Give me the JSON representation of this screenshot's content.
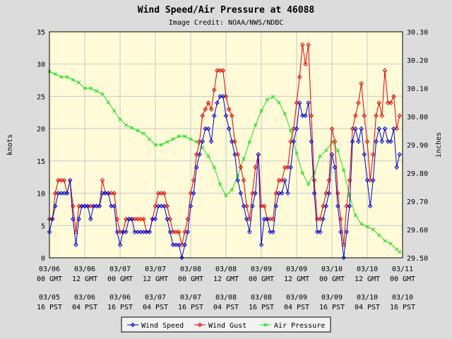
{
  "chart_data": {
    "type": "line",
    "title": "Wind Speed/Air Pressure at 46088",
    "subtitle": "Image Credit: NOAA/NWS/NDBC",
    "ylabel_left": "knots",
    "ylabel_right": "inches",
    "ylim_left": [
      0,
      35
    ],
    "ylim_right": [
      29.5,
      30.3
    ],
    "grid": true,
    "legend_position": "bottom-center",
    "left_ticks": [
      "0",
      "5",
      "10",
      "15",
      "20",
      "25",
      "30",
      "35"
    ],
    "right_ticks": [
      "29.50",
      "29.60",
      "29.70",
      "29.80",
      "29.90",
      "30.00",
      "30.10",
      "30.20",
      "30.30"
    ],
    "x_unit": "hours since 03/06 00 GMT",
    "x_range": [
      0,
      120
    ],
    "x_ticks": [
      {
        "gmt_date": "03/06",
        "gmt_time": "00 GMT",
        "pst_date": "03/05",
        "pst_time": "16 PST"
      },
      {
        "gmt_date": "03/06",
        "gmt_time": "12 GMT",
        "pst_date": "03/06",
        "pst_time": "04 PST"
      },
      {
        "gmt_date": "03/07",
        "gmt_time": "00 GMT",
        "pst_date": "03/06",
        "pst_time": "16 PST"
      },
      {
        "gmt_date": "03/07",
        "gmt_time": "12 GMT",
        "pst_date": "03/07",
        "pst_time": "04 PST"
      },
      {
        "gmt_date": "03/08",
        "gmt_time": "00 GMT",
        "pst_date": "03/07",
        "pst_time": "16 PST"
      },
      {
        "gmt_date": "03/08",
        "gmt_time": "12 GMT",
        "pst_date": "03/08",
        "pst_time": "04 PST"
      },
      {
        "gmt_date": "03/09",
        "gmt_time": "00 GMT",
        "pst_date": "03/08",
        "pst_time": "16 PST"
      },
      {
        "gmt_date": "03/09",
        "gmt_time": "12 GMT",
        "pst_date": "03/09",
        "pst_time": "04 PST"
      },
      {
        "gmt_date": "03/10",
        "gmt_time": "00 GMT",
        "pst_date": "03/09",
        "pst_time": "16 PST"
      },
      {
        "gmt_date": "03/10",
        "gmt_time": "12 GMT",
        "pst_date": "03/10",
        "pst_time": "04 PST"
      },
      {
        "gmt_date": "03/11",
        "gmt_time": "00 GMT",
        "pst_date": "03/10",
        "pst_time": "16 PST"
      }
    ],
    "series": [
      {
        "name": "Wind Speed",
        "axis": "left",
        "color": "#0000cc",
        "marker": "diamond",
        "x": [
          0,
          1,
          2,
          3,
          4,
          5,
          6,
          7,
          8,
          9,
          10,
          11,
          12,
          13,
          14,
          15,
          16,
          17,
          18,
          19,
          20,
          21,
          22,
          23,
          24,
          25,
          26,
          27,
          28,
          29,
          30,
          31,
          32,
          33,
          34,
          35,
          36,
          37,
          38,
          39,
          40,
          41,
          42,
          43,
          44,
          45,
          46,
          47,
          48,
          49,
          50,
          51,
          52,
          53,
          54,
          55,
          56,
          57,
          58,
          59,
          60,
          61,
          62,
          63,
          64,
          65,
          66,
          67,
          68,
          69,
          70,
          71,
          72,
          73,
          74,
          75,
          76,
          77,
          78,
          79,
          80,
          81,
          82,
          83,
          84,
          85,
          86,
          87,
          88,
          89,
          90,
          91,
          92,
          93,
          94,
          95,
          96,
          97,
          98,
          99,
          100,
          101,
          102,
          103,
          104,
          105,
          106,
          107,
          108,
          109,
          110,
          111,
          112,
          113,
          114,
          115,
          116,
          117,
          118,
          119
        ],
        "y": [
          4,
          6,
          8,
          10,
          10,
          10,
          10,
          12,
          6,
          2,
          6,
          8,
          8,
          8,
          6,
          8,
          8,
          8,
          10,
          10,
          10,
          8,
          8,
          4,
          2,
          4,
          4,
          6,
          6,
          4,
          4,
          4,
          4,
          4,
          4,
          6,
          6,
          8,
          8,
          8,
          6,
          4,
          2,
          2,
          2,
          0,
          2,
          4,
          8,
          10,
          14,
          16,
          18,
          20,
          20,
          18,
          22,
          24,
          25,
          25,
          22,
          20,
          18,
          16,
          12,
          10,
          8,
          6,
          4,
          8,
          10,
          16,
          2,
          6,
          6,
          4,
          4,
          8,
          10,
          10,
          12,
          10,
          14,
          18,
          20,
          24,
          22,
          22,
          24,
          18,
          10,
          4,
          4,
          6,
          8,
          10,
          16,
          14,
          8,
          4,
          0,
          4,
          8,
          18,
          20,
          18,
          20,
          16,
          12,
          8,
          12,
          18,
          20,
          18,
          20,
          18,
          18,
          20,
          14,
          16
        ]
      },
      {
        "name": "Wind Gust",
        "axis": "left",
        "color": "#dd0000",
        "marker": "diamond",
        "x": [
          0,
          1,
          2,
          3,
          4,
          5,
          6,
          7,
          8,
          9,
          10,
          11,
          12,
          13,
          14,
          15,
          16,
          17,
          18,
          19,
          20,
          21,
          22,
          23,
          24,
          25,
          26,
          27,
          28,
          29,
          30,
          31,
          32,
          33,
          34,
          35,
          36,
          37,
          38,
          39,
          40,
          41,
          42,
          43,
          44,
          45,
          46,
          47,
          48,
          49,
          50,
          51,
          52,
          53,
          54,
          55,
          56,
          57,
          58,
          59,
          60,
          61,
          62,
          63,
          64,
          65,
          66,
          67,
          68,
          69,
          70,
          71,
          72,
          73,
          74,
          75,
          76,
          77,
          78,
          79,
          80,
          81,
          82,
          83,
          84,
          85,
          86,
          87,
          88,
          89,
          90,
          91,
          92,
          93,
          94,
          95,
          96,
          97,
          98,
          99,
          100,
          101,
          102,
          103,
          104,
          105,
          106,
          107,
          108,
          109,
          110,
          111,
          112,
          113,
          114,
          115,
          116,
          117,
          118,
          119
        ],
        "y": [
          6,
          6,
          10,
          12,
          12,
          12,
          10,
          12,
          8,
          4,
          8,
          8,
          8,
          8,
          8,
          8,
          8,
          8,
          12,
          10,
          10,
          10,
          10,
          6,
          4,
          4,
          6,
          6,
          6,
          6,
          6,
          6,
          6,
          4,
          4,
          6,
          8,
          10,
          10,
          10,
          8,
          6,
          4,
          4,
          4,
          2,
          4,
          6,
          10,
          12,
          16,
          18,
          22,
          23,
          24,
          23,
          26,
          29,
          29,
          29,
          25,
          23,
          22,
          18,
          16,
          14,
          12,
          8,
          6,
          10,
          14,
          16,
          8,
          8,
          6,
          6,
          6,
          10,
          12,
          12,
          14,
          14,
          18,
          20,
          24,
          28,
          33,
          30,
          33,
          22,
          12,
          6,
          6,
          8,
          10,
          12,
          20,
          18,
          10,
          6,
          2,
          8,
          12,
          20,
          22,
          24,
          27,
          22,
          18,
          12,
          16,
          22,
          24,
          22,
          29,
          24,
          24,
          25,
          20,
          22
        ]
      },
      {
        "name": "Air Pressure",
        "axis": "right",
        "color": "#22dd22",
        "marker": "x",
        "x": [
          0,
          2,
          4,
          6,
          8,
          10,
          12,
          14,
          16,
          18,
          20,
          22,
          24,
          26,
          28,
          30,
          32,
          34,
          36,
          38,
          40,
          42,
          44,
          46,
          48,
          50,
          52,
          54,
          56,
          58,
          60,
          62,
          64,
          66,
          68,
          70,
          72,
          74,
          76,
          78,
          80,
          82,
          84,
          86,
          88,
          90,
          92,
          94,
          96,
          98,
          100,
          102,
          104,
          106,
          108,
          110,
          112,
          114,
          116,
          118,
          119
        ],
        "y": [
          30.16,
          30.15,
          30.14,
          30.14,
          30.13,
          30.12,
          30.1,
          30.1,
          30.09,
          30.08,
          30.05,
          30.02,
          29.99,
          29.97,
          29.96,
          29.95,
          29.94,
          29.92,
          29.9,
          29.9,
          29.91,
          29.92,
          29.93,
          29.93,
          29.92,
          29.91,
          29.89,
          29.86,
          29.82,
          29.76,
          29.72,
          29.74,
          29.79,
          29.85,
          29.91,
          29.97,
          30.02,
          30.06,
          30.07,
          30.05,
          30.01,
          29.95,
          29.87,
          29.8,
          29.76,
          29.8,
          29.86,
          29.88,
          29.91,
          29.88,
          29.81,
          29.72,
          29.65,
          29.62,
          29.61,
          29.6,
          29.58,
          29.56,
          29.55,
          29.53,
          29.52
        ]
      }
    ]
  }
}
